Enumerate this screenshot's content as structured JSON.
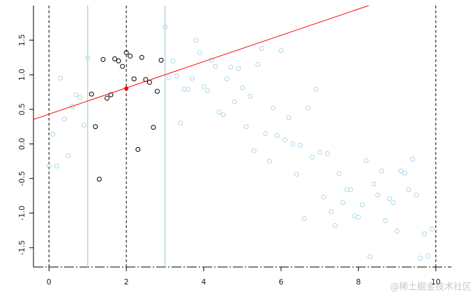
{
  "chart_data": {
    "type": "scatter",
    "xlim": [
      -0.4,
      10.4
    ],
    "ylim": [
      -1.78,
      2.0
    ],
    "xticks": [
      0,
      2,
      4,
      6,
      8,
      10
    ],
    "yticks": [
      -1.5,
      {
        "value": -1,
        "label": "-1.0"
      },
      -0.5,
      {
        "value": 0,
        "label": "0.0"
      },
      0.5,
      {
        "value": 1,
        "label": "1.0"
      },
      1.5
    ],
    "series": [
      {
        "color": "#add8e6",
        "x": [
          0,
          0.1,
          0.2,
          0.3,
          0.4,
          0.5,
          0.6,
          0.7,
          0.8,
          0.9,
          1.0,
          3.0,
          3.1,
          3.2,
          3.3,
          3.4,
          3.5,
          3.6,
          3.7,
          3.8,
          3.9,
          4.0,
          4.1,
          4.2,
          4.3,
          4.4,
          4.5,
          4.6,
          4.7,
          4.8,
          4.9,
          5.0,
          5.1,
          5.2,
          5.3,
          5.4,
          5.5,
          5.6,
          5.7,
          5.8,
          5.9,
          6.0,
          6.1,
          6.2,
          6.3,
          6.4,
          6.5,
          6.6,
          6.7,
          6.8,
          6.9,
          7.0,
          7.1,
          7.2,
          7.3,
          7.4,
          7.5,
          7.6,
          7.7,
          7.8,
          7.9,
          8.0,
          8.1,
          8.2,
          8.3,
          8.4,
          8.5,
          8.6,
          8.7,
          8.8,
          8.9,
          9.0,
          9.1,
          9.2,
          9.3,
          9.4,
          9.5,
          9.6,
          9.7,
          9.8,
          9.9
        ],
        "values": [
          -0.32,
          0.14,
          -0.32,
          0.95,
          0.36,
          -0.17,
          0.54,
          0.71,
          0.67,
          0.27,
          1.24,
          1.69,
          0.96,
          1.2,
          0.98,
          0.3,
          0.79,
          0.79,
          0.95,
          1.5,
          1.32,
          0.83,
          0.77,
          1.21,
          1.12,
          0.46,
          0.42,
          0.94,
          1.11,
          0.61,
          1.09,
          0.81,
          0.25,
          0.69,
          -0.1,
          1.15,
          1.38,
          0.15,
          -0.25,
          0.52,
          0.12,
          1.35,
          0.06,
          0.38,
          0.0,
          -0.44,
          -0.02,
          -1.08,
          0.52,
          -0.19,
          0.79,
          -0.12,
          -0.77,
          -0.14,
          -0.98,
          -1.18,
          -0.43,
          -0.85,
          -0.66,
          -0.66,
          -1.04,
          -1.06,
          -0.88,
          -0.24,
          -1.63,
          -0.58,
          -0.74,
          -0.39,
          -1.11,
          -0.79,
          -0.85,
          -1.26,
          -0.39,
          -0.42,
          -0.66,
          -0.22,
          -0.74,
          -1.65,
          -1.3,
          -1.62,
          -1.23
        ]
      },
      {
        "color": "#000000",
        "x": [
          1.1,
          1.2,
          1.3,
          1.4,
          1.5,
          1.6,
          1.7,
          1.8,
          1.9,
          2.0,
          2.1,
          2.2,
          2.3,
          2.4,
          2.5,
          2.6,
          2.7,
          2.8,
          2.9
        ],
        "values": [
          0.72,
          0.25,
          -0.51,
          1.22,
          0.66,
          0.71,
          1.23,
          1.2,
          1.12,
          1.32,
          1.27,
          0.94,
          -0.08,
          1.25,
          0.93,
          0.89,
          0.24,
          0.76,
          1.21
        ]
      }
    ],
    "vlines": [
      {
        "x": 0,
        "color": "#000000",
        "dashed": true
      },
      {
        "x": 2,
        "color": "#000000",
        "dashed": true
      },
      {
        "x": 10,
        "color": "#000000",
        "dashed": true
      },
      {
        "x": 1,
        "color": "#add8e6",
        "dashed": false
      },
      {
        "x": 3,
        "color": "#add8e6",
        "dashed": false
      }
    ],
    "fit_line": {
      "intercept": 0.43,
      "slope": 0.19,
      "color": "#ff0000"
    },
    "fit_point": {
      "x": 2,
      "y": 0.8,
      "color": "#ff0000"
    },
    "watermark": "@稀土掘金技术社区"
  }
}
